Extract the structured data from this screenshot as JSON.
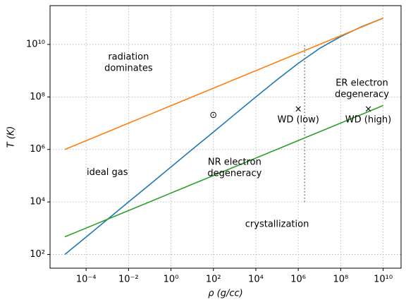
{
  "chart_data": {
    "type": "line",
    "xlabel": "ρ (g/cc)",
    "ylabel": "T (K)",
    "xscale": "log",
    "yscale": "log",
    "grid": true,
    "xlim": [
      2e-06,
      70000000000.0
    ],
    "ylim": [
      30,
      300000000000.0
    ],
    "xticks": [
      {
        "value": 0.0001,
        "label": "10⁻⁴"
      },
      {
        "value": 0.01,
        "label": "10⁻²"
      },
      {
        "value": 1,
        "label": "10⁰"
      },
      {
        "value": 100,
        "label": "10²"
      },
      {
        "value": 10000.0,
        "label": "10⁴"
      },
      {
        "value": 1000000.0,
        "label": "10⁶"
      },
      {
        "value": 100000000.0,
        "label": "10⁸"
      },
      {
        "value": 10000000000.0,
        "label": "10¹⁰"
      }
    ],
    "yticks": [
      {
        "value": 100,
        "label": "10²"
      },
      {
        "value": 10000.0,
        "label": "10⁴"
      },
      {
        "value": 1000000.0,
        "label": "10⁶"
      },
      {
        "value": 100000000.0,
        "label": "10⁸"
      },
      {
        "value": 10000000000.0,
        "label": "10¹⁰"
      }
    ],
    "x": [
      1e-05,
      0.0001,
      0.001,
      0.01,
      0.1,
      1,
      10,
      100,
      1000.0,
      10000.0,
      100000.0,
      1000000.0,
      10000000.0,
      100000000.0,
      1000000000.0,
      10000000000.0
    ],
    "series": [
      {
        "color": "#1f77b4",
        "values": [
          100,
          460,
          2150,
          10000.0,
          46000.0,
          215000.0,
          1000000.0,
          4600000.0,
          21500000.0,
          100000000.0,
          450000000.0,
          1900000000.0,
          7000000000.0,
          20000000000.0,
          48000000000.0,
          100000000000.0
        ]
      },
      {
        "color": "#ff7f0e",
        "values": [
          1000000.0,
          2150000.0,
          4640000.0,
          10000000.0,
          21500000.0,
          46400000.0,
          100000000.0,
          215000000.0,
          464000000.0,
          1000000000.0,
          2150000000.0,
          4640000000.0,
          10000000000.0,
          21500000000.0,
          46400000000.0,
          100000000000.0
        ]
      },
      {
        "color": "#2ca02c",
        "values": [
          470,
          1010,
          2180,
          4700,
          10100.0,
          21800.0,
          47000.0,
          101000.0,
          218000.0,
          470000.0,
          1010000.0,
          2180000.0,
          4700000.0,
          10100000.0,
          21800000.0,
          47000000.0
        ]
      }
    ],
    "vline": {
      "x": 2000000.0,
      "y": [
        10000.0,
        10000000000.0
      ],
      "color": "#777777"
    },
    "points": [
      {
        "x": 100,
        "y": 20000000.0,
        "marker": "⊙"
      },
      {
        "x": 1000000.0,
        "y": 34000000.0,
        "marker": "×",
        "label": "WD (low)"
      },
      {
        "x": 2000000000.0,
        "y": 34000000.0,
        "marker": "×",
        "label": "WD (high)"
      }
    ],
    "annotations": [
      {
        "x": 0.01,
        "y": 2000000000.0,
        "lines": [
          "radiation",
          "dominates"
        ]
      },
      {
        "x": 0.001,
        "y": 130000.0,
        "lines": [
          "ideal gas"
        ]
      },
      {
        "x": 1000,
        "y": 200000.0,
        "lines": [
          "NR electron",
          "degeneracy"
        ]
      },
      {
        "x": 100000.0,
        "y": 1400,
        "lines": [
          "crystallization"
        ]
      },
      {
        "x": 1000000000.0,
        "y": 200000000.0,
        "lines": [
          "ER electron",
          "degeneracy"
        ]
      }
    ]
  }
}
